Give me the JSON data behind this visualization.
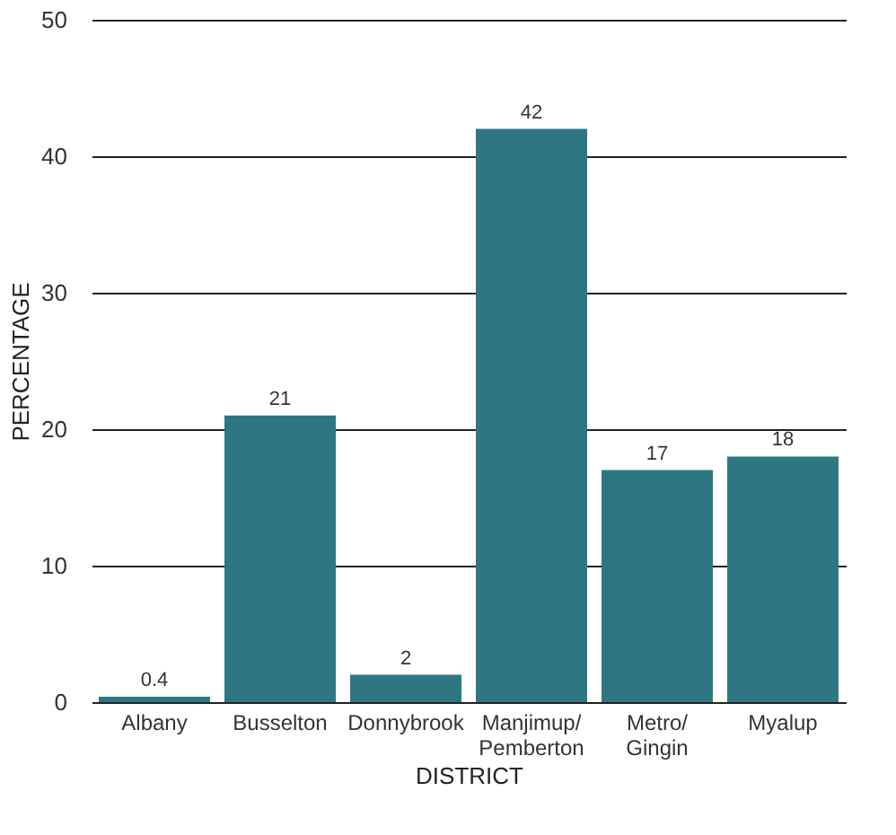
{
  "chart_data": {
    "type": "bar",
    "xlabel": "DISTRICT",
    "ylabel": "PERCENTAGE",
    "categories": [
      "Albany",
      "Busselton",
      "Donnybrook",
      "Manjimup/\nPemberton",
      "Metro/\nGingin",
      "Myalup"
    ],
    "values": [
      0.4,
      21,
      2,
      42,
      17,
      18
    ],
    "color": "#2e7782",
    "ylim": [
      0,
      50
    ],
    "yticks": [
      0,
      10,
      20,
      30,
      40,
      50
    ],
    "grid": "y",
    "data_labels": true
  }
}
